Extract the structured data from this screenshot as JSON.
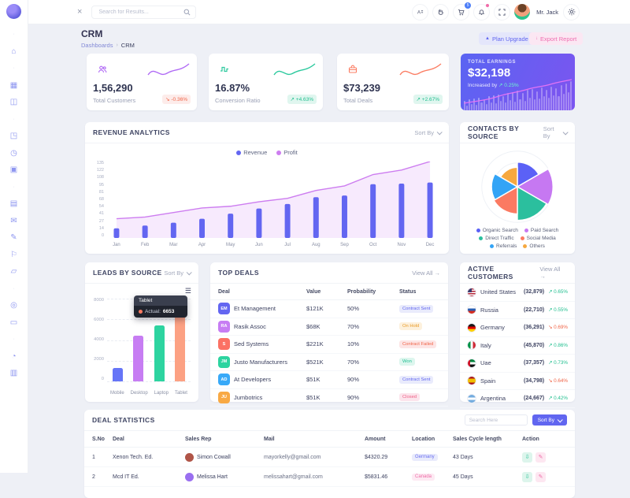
{
  "colors": {
    "primary": "#6366f1",
    "magenta": "#cd7df0",
    "teal": "#2cc99e",
    "salmon": "#fb7d63",
    "blue": "#38a9f8",
    "orange": "#f6a83f",
    "up_green": "#21bf8f",
    "down_red": "#f06548"
  },
  "sidebar": {
    "icons": [
      {
        "name": "section-dot",
        "glyph": "·"
      },
      {
        "name": "home-icon",
        "glyph": "⌂"
      },
      {
        "name": "section-dot",
        "glyph": "·"
      },
      {
        "name": "apps-grid-icon",
        "glyph": "▦"
      },
      {
        "name": "widgets-icon",
        "glyph": "◫"
      },
      {
        "name": "section-dot",
        "glyph": "·"
      },
      {
        "name": "briefcase-icon",
        "glyph": "◳"
      },
      {
        "name": "history-icon",
        "glyph": "◷"
      },
      {
        "name": "media-icon",
        "glyph": "▣"
      },
      {
        "name": "section-dot",
        "glyph": "·"
      },
      {
        "name": "cards-icon",
        "glyph": "▤"
      },
      {
        "name": "mail-icon",
        "glyph": "✉"
      },
      {
        "name": "edit-icon",
        "glyph": "✎"
      },
      {
        "name": "pin-icon",
        "glyph": "⚐"
      },
      {
        "name": "shipping-icon",
        "glyph": "▱"
      },
      {
        "name": "section-dot",
        "glyph": "·"
      },
      {
        "name": "explore-icon",
        "glyph": "◎"
      },
      {
        "name": "archive-icon",
        "glyph": "▭"
      },
      {
        "name": "section-dot",
        "glyph": "·"
      },
      {
        "name": "chart-icon",
        "glyph": "◔"
      },
      {
        "name": "wallet-icon",
        "glyph": "▥"
      }
    ]
  },
  "topbar": {
    "search_placeholder": "Search for Results...",
    "cart_badge": "5",
    "user_name": "Mr. Jack"
  },
  "page_header": {
    "title": "CRM",
    "breadcrumb_parent": "Dashboards",
    "breadcrumb_separator": "›",
    "breadcrumb_current": "CRM",
    "plan_upgrade_label": "Plan Upgrade",
    "export_report_label": "Export Report"
  },
  "stat_cards": [
    {
      "value": "1,56,290",
      "label": "Total Customers",
      "delta": "↘ -0.36%",
      "direction": "down",
      "icon": "users-icon",
      "accent": "#b06af5",
      "icon_bg": "#f3e8fd"
    },
    {
      "value": "16.87%",
      "label": "Conversion Ratio",
      "delta": "↗ +4.63%",
      "direction": "up",
      "icon": "pulse-icon",
      "accent": "#2cc99e",
      "icon_bg": "#def7ef"
    },
    {
      "value": "$73,239",
      "label": "Total Deals",
      "delta": "↗ +2.67%",
      "direction": "up",
      "icon": "briefcase-icon",
      "accent": "#fb7d63",
      "icon_bg": "#fde8e2"
    }
  ],
  "earnings_card": {
    "title": "TOTAL EARNINGS",
    "value": "$32,198",
    "subtext": "Increased by",
    "delta": "↗ 0.25%",
    "chart_data": {
      "type": "bar+line",
      "line_color": "#e273f5",
      "bar_heights_pct": [
        30,
        16,
        34,
        20,
        38,
        18,
        40,
        24,
        36,
        20,
        44,
        26,
        48,
        22,
        50,
        30,
        46,
        26,
        54,
        32,
        58,
        28,
        62,
        36,
        55,
        30,
        64,
        40,
        68,
        34,
        60,
        38,
        72,
        44,
        66,
        40,
        76,
        48,
        70,
        44,
        80,
        52,
        86,
        58,
        92
      ]
    }
  },
  "revenue": {
    "title": "REVENUE ANALYTICS",
    "sort_label": "Sort By",
    "chart_data": {
      "type": "bar+area",
      "categories": [
        "Jan",
        "Feb",
        "Mar",
        "Apr",
        "May",
        "Jun",
        "Jul",
        "Aug",
        "Sep",
        "Oct",
        "Nov",
        "Dec"
      ],
      "series": [
        {
          "name": "Revenue",
          "type": "bar",
          "color": "#6366f1",
          "values": [
            17,
            22,
            27,
            34,
            43,
            52,
            60,
            72,
            75,
            95,
            96,
            98
          ]
        },
        {
          "name": "Profit",
          "type": "area",
          "color": "#cd7df0",
          "fill": "#f1e4fa",
          "values": [
            34,
            37,
            45,
            53,
            56,
            64,
            70,
            84,
            92,
            112,
            120,
            135
          ]
        }
      ],
      "yticks": [
        135,
        122,
        108,
        95,
        81,
        68,
        54,
        41,
        27,
        14,
        0
      ],
      "ymax": 135,
      "legend_position": "top"
    }
  },
  "contacts": {
    "title": "CONTACTS BY SOURCE",
    "sort_label": "Sort By",
    "chart_data": {
      "type": "rose",
      "max": 55,
      "segments": [
        {
          "label": "Organic Search",
          "value": 38,
          "color": "#5b61f6"
        },
        {
          "label": "Paid Search",
          "value": 55,
          "color": "#c678f2"
        },
        {
          "label": "Direct Traffic",
          "value": 52,
          "color": "#2bbf9e"
        },
        {
          "label": "Social Media",
          "value": 42,
          "color": "#fb7a62"
        },
        {
          "label": "Referrals",
          "value": 40,
          "color": "#33a4f6"
        },
        {
          "label": "Others",
          "value": 30,
          "color": "#f6a83f"
        }
      ]
    }
  },
  "leads": {
    "title": "LEADS BY SOURCE",
    "sort_label": "Sort By",
    "tooltip": {
      "title": "Tablet",
      "series_label": "Actual:",
      "value": "6653"
    },
    "chart_data": {
      "type": "bar",
      "categories": [
        "Mobile",
        "Desktop",
        "Laptop",
        "Tablet"
      ],
      "values": [
        1300,
        4400,
        5400,
        6653
      ],
      "colors": [
        "#6675f7",
        "#c77df3",
        "#2dd4a0",
        "#fca183"
      ],
      "yticks": [
        8000,
        6000,
        4000,
        2000,
        0
      ],
      "ymax": 8000
    }
  },
  "top_deals": {
    "title": "TOP DEALS",
    "view_all_label": "View All →",
    "columns": [
      "Deal",
      "Value",
      "Probability",
      "Status"
    ],
    "rows": [
      {
        "initials": "EM",
        "avatar_color": "#6366f1",
        "name": "Et Management",
        "value": "$121K",
        "probability": "50%",
        "status": "Contract Sent",
        "status_style": "sent"
      },
      {
        "initials": "RA",
        "avatar_color": "#c77df3",
        "name": "Rasik Assoc",
        "value": "$68K",
        "probability": "70%",
        "status": "On Hold",
        "status_style": "hold"
      },
      {
        "initials": "S",
        "avatar_color": "#fb7164",
        "name": "Sed Systems",
        "value": "$221K",
        "probability": "10%",
        "status": "Contract Failed",
        "status_style": "failed"
      },
      {
        "initials": "JM",
        "avatar_color": "#2dd4a0",
        "name": "Justo Manufacturers",
        "value": "$521K",
        "probability": "70%",
        "status": "Won",
        "status_style": "won"
      },
      {
        "initials": "AD",
        "avatar_color": "#38a9f8",
        "name": "At Developers",
        "value": "$51K",
        "probability": "90%",
        "status": "Contract Sent",
        "status_style": "sent"
      },
      {
        "initials": "JU",
        "avatar_color": "#f8a944",
        "name": "Jumbotrics",
        "value": "$51K",
        "probability": "90%",
        "status": "Closed",
        "status_style": "closed"
      }
    ]
  },
  "active_customers": {
    "title": "ACTIVE CUSTOMERS",
    "view_all_label": "View All →",
    "rows": [
      {
        "country": "United States",
        "flag": "f-us",
        "value": "(32,879)",
        "delta": "↗ 0.65%",
        "direction": "up"
      },
      {
        "country": "Russia",
        "flag": "f-ru",
        "value": "(22,710)",
        "delta": "↗ 0.55%",
        "direction": "up"
      },
      {
        "country": "Germany",
        "flag": "f-de",
        "value": "(36,291)",
        "delta": "↘ 0.69%",
        "direction": "down"
      },
      {
        "country": "Italy",
        "flag": "f-it",
        "value": "(45,870)",
        "delta": "↗ 0.86%",
        "direction": "up"
      },
      {
        "country": "Uae",
        "flag": "f-ae",
        "value": "(37,357)",
        "delta": "↗ 0.73%",
        "direction": "up"
      },
      {
        "country": "Spain",
        "flag": "f-es",
        "value": "(34,798)",
        "delta": "↘ 0.64%",
        "direction": "down"
      },
      {
        "country": "Argentina",
        "flag": "f-ar",
        "value": "(24,667)",
        "delta": "↗ 0.42%",
        "direction": "up"
      }
    ]
  },
  "deal_stats": {
    "title": "DEAL STATISTICS",
    "search_placeholder": "Search Here",
    "sort_label": "Sort By",
    "columns": [
      "S.No",
      "Deal",
      "Sales Rep",
      "Mail",
      "Amount",
      "Location",
      "Sales Cycle length",
      "Action"
    ],
    "rows": [
      {
        "no": "1",
        "deal": "Xenon Tech. Ed.",
        "rep": "Simon Cowall",
        "rep_color": "#b05548",
        "mail": "mayorkelly@gmail.com",
        "amount": "$4320.29",
        "location": "Germany",
        "location_style": "loc-indigo",
        "cycle": "43 Days"
      },
      {
        "no": "2",
        "deal": "Mcd IT Ed.",
        "rep": "Melissa Hart",
        "rep_color": "#9a6ff0",
        "mail": "melissahart@gmail.com",
        "amount": "$5831.46",
        "location": "Canada",
        "location_style": "loc-pink",
        "cycle": "45 Days"
      }
    ]
  }
}
